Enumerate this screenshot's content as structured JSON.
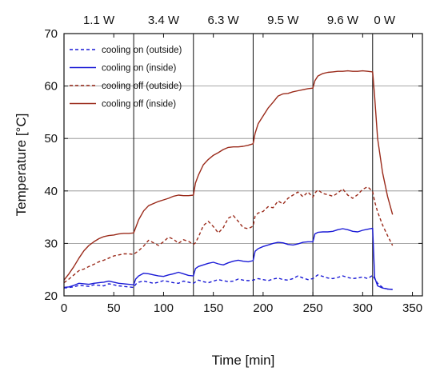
{
  "chart_data": {
    "type": "line",
    "xlabel": "Time [min]",
    "ylabel": "Temperature [°C]",
    "xlim": [
      0,
      360
    ],
    "ylim": [
      20,
      70
    ],
    "x_ticks": [
      0,
      50,
      100,
      150,
      200,
      250,
      300,
      350
    ],
    "y_ticks": [
      20,
      30,
      40,
      50,
      60,
      70
    ],
    "grid": "horizontal",
    "legend_position": "top-left",
    "phase_boundaries": [
      70,
      130,
      190,
      250,
      310
    ],
    "phase_labels": [
      {
        "label": "1.1 W",
        "x": 35
      },
      {
        "label": "3.4 W",
        "x": 100
      },
      {
        "label": "6.3 W",
        "x": 160
      },
      {
        "label": "9.5 W",
        "x": 220
      },
      {
        "label": "9.6 W",
        "x": 280
      },
      {
        "label": "0 W",
        "x": 322
      }
    ],
    "series": [
      {
        "name": "cooling on (outside)",
        "color": "#1a1ad6",
        "dash": "dashed",
        "x": [
          0,
          5,
          10,
          15,
          20,
          25,
          30,
          35,
          40,
          45,
          50,
          55,
          60,
          65,
          70,
          72,
          75,
          80,
          85,
          90,
          95,
          100,
          105,
          110,
          115,
          120,
          125,
          130,
          135,
          140,
          145,
          150,
          155,
          160,
          165,
          170,
          175,
          180,
          185,
          190,
          195,
          200,
          205,
          210,
          215,
          220,
          225,
          230,
          235,
          240,
          245,
          250,
          255,
          260,
          265,
          270,
          275,
          280,
          285,
          290,
          295,
          300,
          305,
          310,
          315,
          320,
          325,
          330
        ],
        "y": [
          21.5,
          21.6,
          21.7,
          22.0,
          21.9,
          21.8,
          22.1,
          22.0,
          21.9,
          22.3,
          22.1,
          21.9,
          21.8,
          21.7,
          21.6,
          22.2,
          22.6,
          22.8,
          22.6,
          22.4,
          22.6,
          22.9,
          22.7,
          22.5,
          22.4,
          22.8,
          22.6,
          22.4,
          23.0,
          22.7,
          22.5,
          22.8,
          23.1,
          22.9,
          22.7,
          22.8,
          23.2,
          23.0,
          22.9,
          23.0,
          23.3,
          23.1,
          22.9,
          23.2,
          23.4,
          23.1,
          23.0,
          23.3,
          23.8,
          23.4,
          23.1,
          23.3,
          24.0,
          23.7,
          23.4,
          23.3,
          23.5,
          23.8,
          23.5,
          23.3,
          23.4,
          23.6,
          23.3,
          23.9,
          22.4,
          21.6,
          21.3,
          21.2
        ]
      },
      {
        "name": "cooling on (inside)",
        "color": "#1a1ad6",
        "dash": "solid",
        "x": [
          0,
          5,
          10,
          15,
          20,
          25,
          30,
          35,
          40,
          45,
          50,
          55,
          60,
          65,
          70,
          72,
          75,
          80,
          85,
          90,
          95,
          100,
          105,
          110,
          115,
          120,
          125,
          130,
          132,
          135,
          140,
          145,
          150,
          155,
          160,
          165,
          170,
          175,
          180,
          185,
          190,
          192,
          195,
          200,
          205,
          210,
          215,
          220,
          225,
          230,
          235,
          240,
          245,
          250,
          252,
          255,
          260,
          265,
          270,
          275,
          280,
          285,
          290,
          295,
          300,
          305,
          310,
          312,
          315,
          320,
          325,
          330
        ],
        "y": [
          21.6,
          21.7,
          22.0,
          22.4,
          22.3,
          22.2,
          22.4,
          22.5,
          22.6,
          22.8,
          22.6,
          22.4,
          22.3,
          22.2,
          22.1,
          23.2,
          23.8,
          24.3,
          24.2,
          24.0,
          23.8,
          23.7,
          24.0,
          24.2,
          24.5,
          24.2,
          23.9,
          23.8,
          25.2,
          25.6,
          25.9,
          26.2,
          26.4,
          26.1,
          25.9,
          26.3,
          26.6,
          26.8,
          26.6,
          26.5,
          26.7,
          28.5,
          29.0,
          29.4,
          29.7,
          30.0,
          30.2,
          30.1,
          29.8,
          29.7,
          29.9,
          30.2,
          30.3,
          30.3,
          31.8,
          32.1,
          32.2,
          32.2,
          32.3,
          32.6,
          32.8,
          32.6,
          32.3,
          32.2,
          32.5,
          32.7,
          32.9,
          23.5,
          21.9,
          21.5,
          21.3,
          21.2
        ]
      },
      {
        "name": "cooling off (outside)",
        "color": "#9a2a1a",
        "dash": "dashed",
        "x": [
          0,
          5,
          10,
          15,
          20,
          25,
          30,
          35,
          40,
          45,
          50,
          55,
          60,
          65,
          70,
          72,
          75,
          80,
          85,
          90,
          95,
          100,
          105,
          110,
          115,
          120,
          125,
          130,
          132,
          135,
          140,
          145,
          150,
          155,
          160,
          165,
          170,
          175,
          180,
          185,
          190,
          192,
          195,
          200,
          205,
          210,
          215,
          220,
          225,
          230,
          235,
          240,
          245,
          250,
          252,
          255,
          260,
          265,
          270,
          275,
          280,
          285,
          290,
          295,
          300,
          305,
          310,
          312,
          315,
          320,
          325,
          330
        ],
        "y": [
          22.5,
          23.2,
          24.0,
          24.8,
          25.1,
          25.6,
          26.0,
          26.5,
          26.8,
          27.2,
          27.6,
          27.8,
          28.0,
          28.0,
          27.9,
          28.2,
          28.6,
          29.5,
          30.6,
          30.1,
          29.6,
          30.3,
          31.2,
          30.8,
          30.0,
          30.7,
          30.4,
          29.8,
          30.1,
          31.2,
          33.4,
          34.2,
          33.2,
          32.0,
          33.0,
          34.8,
          35.3,
          34.2,
          33.0,
          32.8,
          33.3,
          35.2,
          35.8,
          36.1,
          37.0,
          36.8,
          38.1,
          37.5,
          38.6,
          39.2,
          39.8,
          38.9,
          39.8,
          38.8,
          39.6,
          40.2,
          39.5,
          39.3,
          39.0,
          39.6,
          40.4,
          39.2,
          38.6,
          39.3,
          40.3,
          40.8,
          39.9,
          38.0,
          36.0,
          33.5,
          31.5,
          29.6
        ]
      },
      {
        "name": "cooling off (inside)",
        "color": "#9a2a1a",
        "dash": "solid",
        "x": [
          0,
          5,
          10,
          15,
          20,
          25,
          30,
          35,
          40,
          45,
          50,
          55,
          60,
          65,
          70,
          72,
          75,
          80,
          85,
          90,
          95,
          100,
          105,
          110,
          115,
          120,
          125,
          130,
          132,
          135,
          140,
          145,
          150,
          155,
          160,
          165,
          170,
          175,
          180,
          185,
          190,
          192,
          195,
          200,
          205,
          210,
          215,
          220,
          225,
          230,
          235,
          240,
          245,
          250,
          252,
          255,
          260,
          265,
          270,
          275,
          280,
          285,
          290,
          295,
          300,
          305,
          310,
          312,
          315,
          320,
          325,
          330
        ],
        "y": [
          23.0,
          24.2,
          25.6,
          27.2,
          28.6,
          29.6,
          30.3,
          30.9,
          31.3,
          31.5,
          31.6,
          31.8,
          31.9,
          31.9,
          32.0,
          33.0,
          34.5,
          36.2,
          37.2,
          37.6,
          38.0,
          38.3,
          38.6,
          39.0,
          39.2,
          39.1,
          39.1,
          39.2,
          41.5,
          43.0,
          45.0,
          46.0,
          46.8,
          47.3,
          47.9,
          48.3,
          48.4,
          48.4,
          48.5,
          48.7,
          49.0,
          51.0,
          52.8,
          54.3,
          55.8,
          56.9,
          58.1,
          58.5,
          58.6,
          58.9,
          59.1,
          59.3,
          59.5,
          59.6,
          61.0,
          61.9,
          62.4,
          62.6,
          62.7,
          62.8,
          62.8,
          62.9,
          62.8,
          62.8,
          62.9,
          62.8,
          62.7,
          58.0,
          50.0,
          43.5,
          39.0,
          35.5
        ]
      }
    ]
  }
}
